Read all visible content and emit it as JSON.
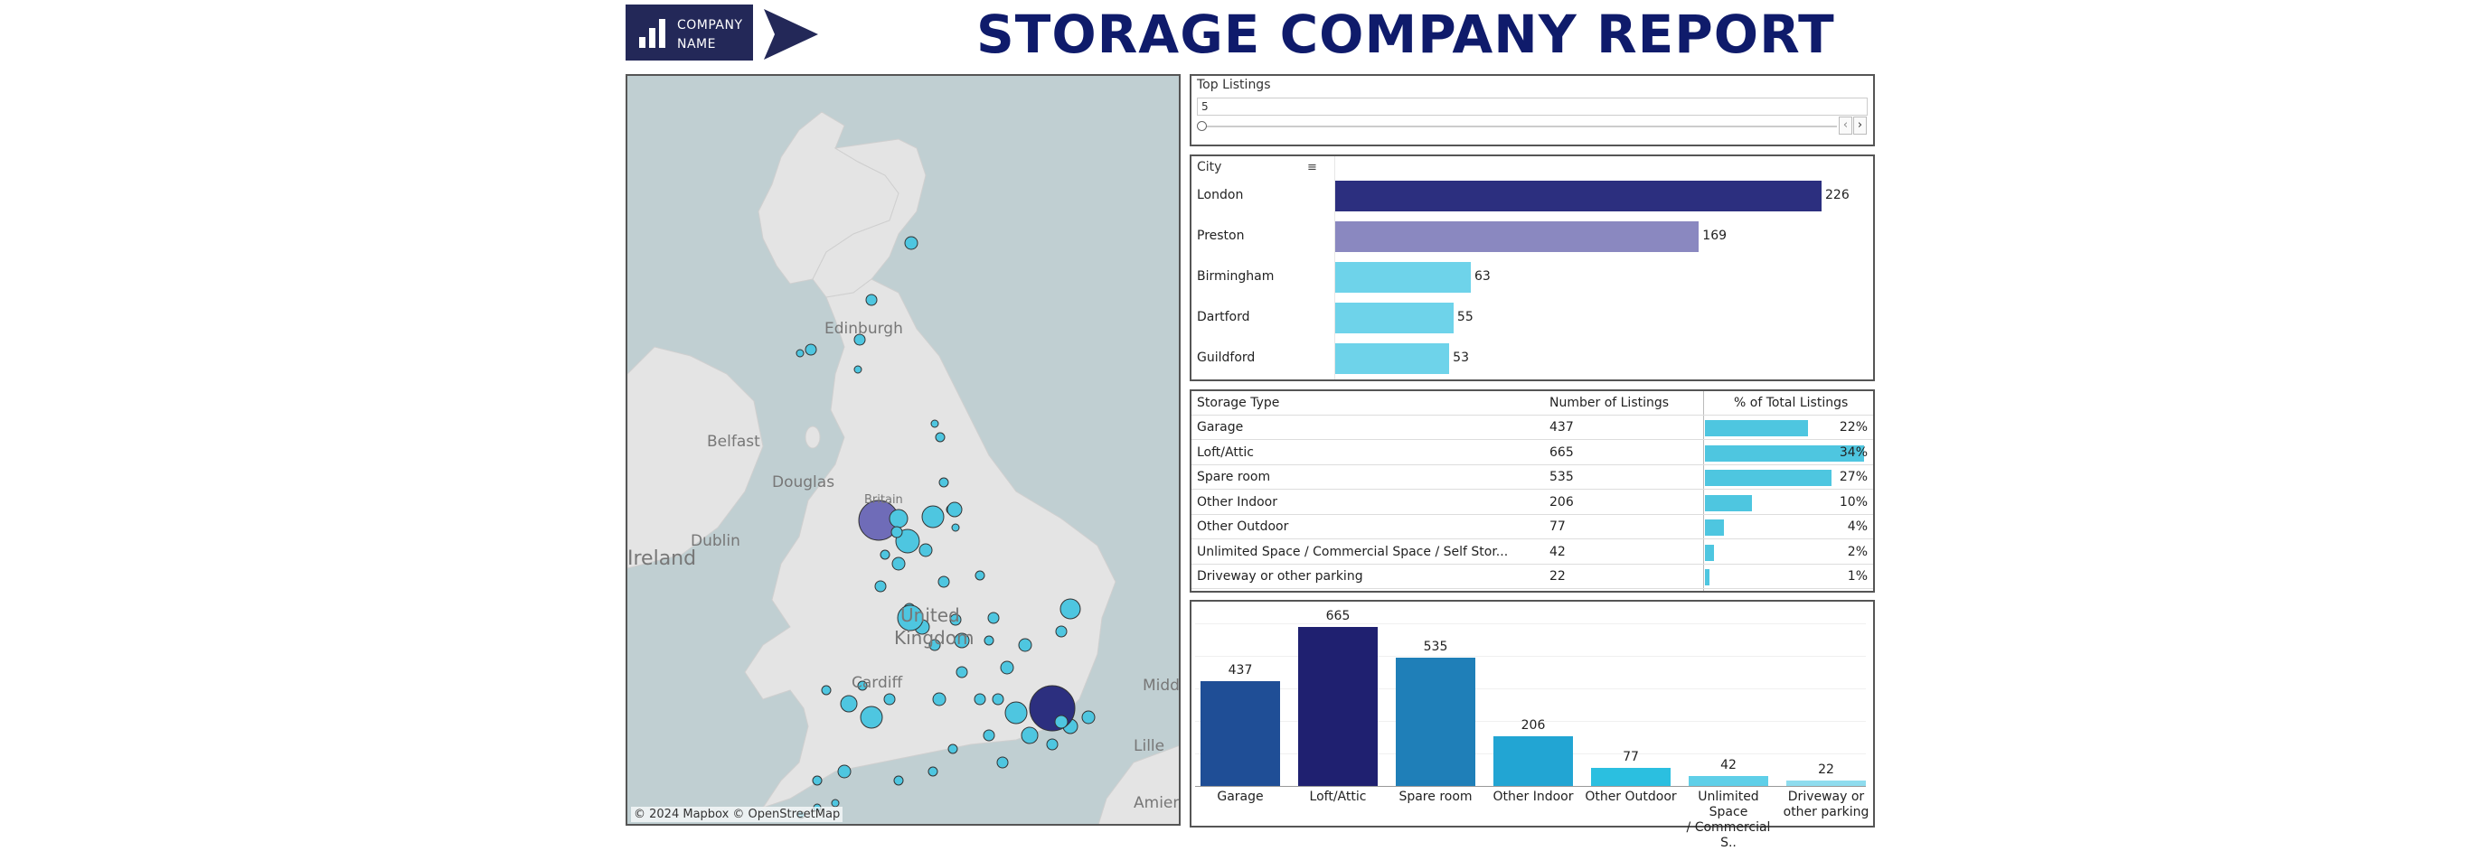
{
  "header": {
    "company_line1": "COMPANY",
    "company_line2": "NAME",
    "title": "STORAGE COMPANY REPORT"
  },
  "map": {
    "labels": {
      "edinburgh": "Edinburgh",
      "belfast": "Belfast",
      "douglas": "Douglas",
      "dublin": "Dublin",
      "ireland": "Ireland",
      "britain": "Britain",
      "united": "United",
      "kingdom": "Kingdom",
      "cardiff": "Cardiff",
      "midde": "Midde",
      "lille": "Lille",
      "amiens": "Amiens"
    },
    "attribution": "© 2024 Mapbox  © OpenStreetMap"
  },
  "filter": {
    "label": "Top Listings",
    "value": "5",
    "prev_icon": "‹",
    "next_icon": "›"
  },
  "city_chart": {
    "header": "City",
    "max": 226,
    "rows": [
      {
        "city": "London",
        "value": 226,
        "value_label": "226",
        "color": "#2c2f7f"
      },
      {
        "city": "Preston",
        "value": 169,
        "value_label": "169",
        "color": "#8a88c0"
      },
      {
        "city": "Birmingham",
        "value": 63,
        "value_label": "63",
        "color": "#6ed3ea"
      },
      {
        "city": "Dartford",
        "value": 55,
        "value_label": "55",
        "color": "#6ed3ea"
      },
      {
        "city": "Guildford",
        "value": 53,
        "value_label": "53",
        "color": "#6ed3ea"
      }
    ]
  },
  "storage_table": {
    "headers": [
      "Storage Type",
      "Number of Listings",
      "% of Total Listings"
    ],
    "rows": [
      {
        "type": "Garage",
        "count": "437",
        "pct": 22,
        "pct_label": "22%"
      },
      {
        "type": "Loft/Attic",
        "count": "665",
        "pct": 34,
        "pct_label": "34%"
      },
      {
        "type": "Spare room",
        "count": "535",
        "pct": 27,
        "pct_label": "27%"
      },
      {
        "type": "Other Indoor",
        "count": "206",
        "pct": 10,
        "pct_label": "10%"
      },
      {
        "type": "Other Outdoor",
        "count": "77",
        "pct": 4,
        "pct_label": "4%"
      },
      {
        "type": "Unlimited Space / Commercial Space / Self Stor...",
        "count": "42",
        "pct": 2,
        "pct_label": "2%"
      },
      {
        "type": "Driveway or other parking",
        "count": "22",
        "pct": 1,
        "pct_label": "1%"
      }
    ]
  },
  "chart_data": {
    "type": "bar",
    "categories": [
      "Garage",
      "Loft/Attic",
      "Spare room",
      "Other Indoor",
      "Other Outdoor",
      "Unlimited Space / Commercial S..",
      "Driveway or other parking"
    ],
    "category_lines": [
      [
        "Garage"
      ],
      [
        "Loft/Attic"
      ],
      [
        "Spare room"
      ],
      [
        "Other Indoor"
      ],
      [
        "Other Outdoor"
      ],
      [
        "Unlimited Space",
        "/ Commercial S.."
      ],
      [
        "Driveway or",
        "other parking"
      ]
    ],
    "values": [
      437,
      665,
      535,
      206,
      77,
      42,
      22
    ],
    "value_labels": [
      "437",
      "665",
      "535",
      "206",
      "77",
      "42",
      "22"
    ],
    "colors": [
      "#1f4e96",
      "#1f2070",
      "#1f7fb8",
      "#22a5d3",
      "#2bbfe0",
      "#5fcfe8",
      "#8fdcee"
    ],
    "ylim": [
      0,
      665
    ],
    "grid": true
  }
}
